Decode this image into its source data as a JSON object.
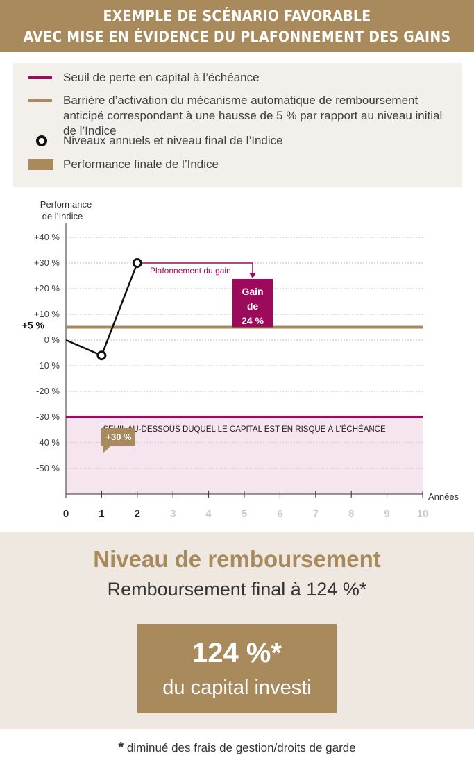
{
  "header": {
    "line1": "EXEMPLE DE SCÉNARIO FAVORABLE",
    "line2": "AVEC MISE EN ÉVIDENCE DU PLAFONNEMENT DES GAINS"
  },
  "legend": {
    "items": [
      {
        "text": "Seuil de perte en capital à l’échéance",
        "swatch": "line",
        "color": "#9b0a5b"
      },
      {
        "text": "Barrière d’activation du mécanisme automatique de remboursement anticipé correspondant à une hausse de 5 % par rapport au niveau initial de l’Indice",
        "swatch": "line",
        "color": "#a88a5c"
      },
      {
        "text": "Niveaux annuels et niveau final de l’Indice",
        "swatch": "circle",
        "color": "#111111"
      },
      {
        "text": "Performance finale de l’Indice",
        "swatch": "box",
        "color": "#a88a5c"
      }
    ]
  },
  "chart_data": {
    "type": "line",
    "ylabel": "Performance de l’Indice",
    "xlabel": "Années",
    "x_ticks": [
      "0",
      "1",
      "2",
      "3",
      "4",
      "5",
      "6",
      "7",
      "8",
      "9",
      "10"
    ],
    "y_ticks": [
      "+40 %",
      "+30 %",
      "+20 %",
      "+10 %",
      "0 %",
      "-10 %",
      "-20 %",
      "-30 %",
      "-40 %",
      "-50 %"
    ],
    "ylim": [
      -60,
      45
    ],
    "xlim": [
      0,
      10
    ],
    "grid": true,
    "series": [
      {
        "x": [
          0,
          1,
          2
        ],
        "y": [
          0,
          -6,
          30
        ]
      }
    ],
    "barrier": {
      "value": 5,
      "label": "+5 %",
      "color": "#a88a5c"
    },
    "threshold": {
      "value": -30,
      "label": "SEUIL AU-DESSOUS DUQUEL LE CAPITAL EST EN RISQUE À L’ÉCHÉANCE",
      "color": "#9b0a5b",
      "fill": "#f6e4ee"
    },
    "callout": {
      "x": 2,
      "y": 30,
      "label": "+30 %"
    },
    "cap_arrow": {
      "label": "Plafonnement du gain"
    },
    "gain_box": {
      "x": 5,
      "value": 24,
      "lines": [
        "Gain",
        "de",
        "24 %"
      ],
      "color": "#9b0a5b"
    },
    "colors": {
      "active_tick": "#222222",
      "inactive_tick": "#c8c8c8",
      "grid": "#bdbdbd",
      "line": "#111111"
    }
  },
  "result": {
    "headline": "Niveau de remboursement",
    "subline": "Remboursement final à 124 %*",
    "big_value": "124 %*",
    "caption": "du capital investi"
  },
  "footnote": {
    "star": "*",
    "text": " diminué des frais de gestion/droits de garde"
  }
}
